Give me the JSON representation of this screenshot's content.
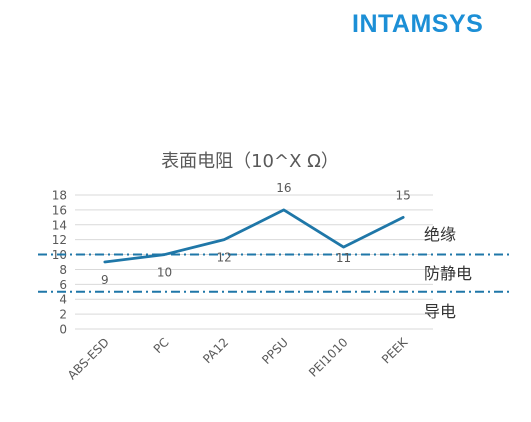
{
  "logo": {
    "text": "INTAMSYS",
    "color": "#1C8FD6"
  },
  "chart_data": {
    "type": "line",
    "title": "表面电阻（10^X Ω）",
    "categories": [
      "ABS-ESD",
      "PC",
      "PA12",
      "PPSU",
      "PEI1010",
      "PEEK"
    ],
    "series": [
      {
        "values": [
          9,
          10,
          12,
          16,
          11,
          15
        ],
        "color": "#1F77A8"
      }
    ],
    "data_labels": [
      "9",
      "10",
      "12",
      "16",
      "11",
      "15"
    ],
    "y_ticks": [
      "0",
      "2",
      "4",
      "6",
      "8",
      "10",
      "12",
      "14",
      "16",
      "18"
    ],
    "ylim": [
      0,
      18
    ],
    "grid": true,
    "xlabel": "",
    "ylabel": "",
    "reference_lines": [
      {
        "y": 10,
        "style": "dash-dot",
        "color": "#1F77A8"
      },
      {
        "y": 5,
        "style": "dash-dot",
        "color": "#1F77A8"
      }
    ],
    "zone_labels": {
      "insulating": "绝缘",
      "antistatic": "防静电",
      "conductive": "导电"
    }
  }
}
